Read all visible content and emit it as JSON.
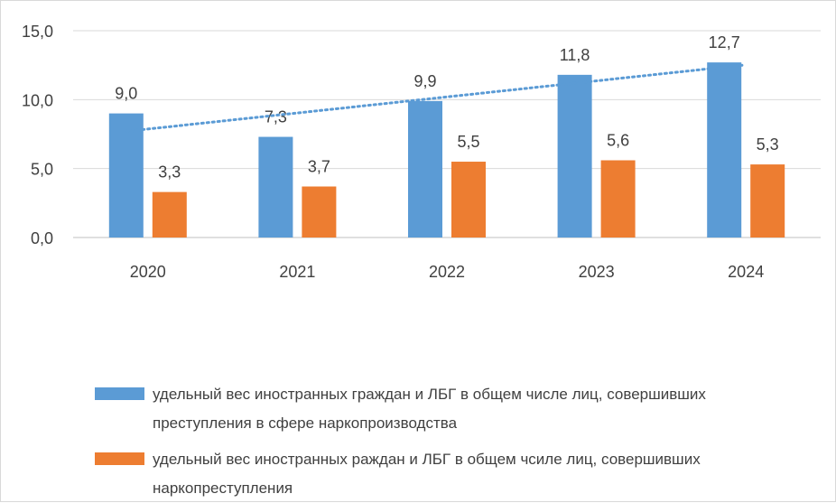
{
  "chart_data": {
    "type": "bar",
    "title": "",
    "xlabel": "",
    "ylabel": "",
    "ylim": [
      0,
      15
    ],
    "yticks": [
      "0,0",
      "5,0",
      "10,0",
      "15,0"
    ],
    "ytick_values": [
      0,
      5,
      10,
      15
    ],
    "grid": true,
    "categories": [
      "2020",
      "2021",
      "2022",
      "2023",
      "2024"
    ],
    "series": [
      {
        "name": "удельный вес иностранных граждан и ЛБГ в общем числе лиц, совершивших преступления в сфере наркопроизводства",
        "color": "#5b9bd5",
        "values": [
          9.0,
          7.3,
          9.9,
          11.8,
          12.7
        ],
        "labels": [
          "9,0",
          "7,3",
          "9,9",
          "11,8",
          "12,7"
        ]
      },
      {
        "name": "удельный вес иностранных раждан и ЛБГ в общем чсиле лиц, совершивших наркопреступления",
        "color": "#ed7d31",
        "values": [
          3.3,
          3.7,
          5.5,
          5.6,
          5.3
        ],
        "labels": [
          "3,3",
          "3,7",
          "5,5",
          "5,6",
          "5,3"
        ]
      }
    ],
    "trendline": {
      "series": 0,
      "type": "linear",
      "style": "dotted",
      "color": "#5b9bd5",
      "start": 7.7,
      "end": 12.5
    },
    "legend_position": "bottom"
  },
  "legend": {
    "item1_line1": "удельный вес иностранных граждан и ЛБГ в общем числе лиц, совершивших",
    "item1_line2": "преступления в сфере наркопроизводства",
    "item2_line1": "удельный вес иностранных раждан и ЛБГ в общем чсиле лиц, совершивших",
    "item2_line2": "наркопреступления"
  }
}
